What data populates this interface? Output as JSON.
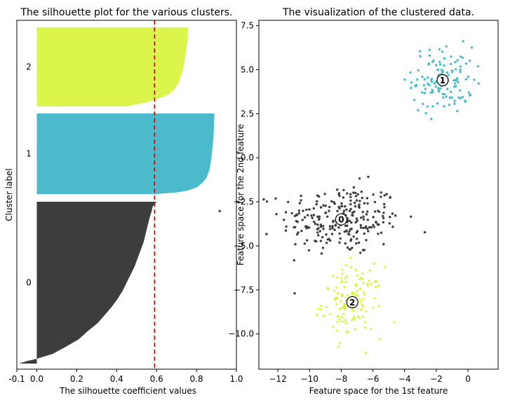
{
  "chart_data": [
    {
      "type": "area",
      "title": "The silhouette plot for the various clusters.",
      "xlabel": "The silhouette coefficient values",
      "ylabel": "Cluster label",
      "xlim": [
        -0.1,
        1.0
      ],
      "xticks": [
        -0.1,
        0.0,
        0.2,
        0.4,
        0.6,
        0.8,
        1.0
      ],
      "xtick_labels": [
        "-0.1",
        "0.0",
        "0.2",
        "0.4",
        "0.6",
        "0.8",
        "1.0"
      ],
      "cluster_labels": [
        "0",
        "1",
        "2"
      ],
      "mean_silhouette": 0.59,
      "clusters": [
        {
          "label": "0",
          "color": "#3d3d3d",
          "samples": 250,
          "profile": [
            [
              0,
              0.6
            ],
            [
              0.03,
              0.58
            ],
            [
              0.06,
              0.575
            ],
            [
              0.1,
              0.565
            ],
            [
              0.15,
              0.555
            ],
            [
              0.2,
              0.545
            ],
            [
              0.25,
              0.535
            ],
            [
              0.3,
              0.52
            ],
            [
              0.35,
              0.505
            ],
            [
              0.4,
              0.49
            ],
            [
              0.45,
              0.47
            ],
            [
              0.5,
              0.45
            ],
            [
              0.55,
              0.43
            ],
            [
              0.6,
              0.405
            ],
            [
              0.65,
              0.375
            ],
            [
              0.7,
              0.34
            ],
            [
              0.75,
              0.305
            ],
            [
              0.8,
              0.255
            ],
            [
              0.85,
              0.21
            ],
            [
              0.9,
              0.14
            ],
            [
              0.94,
              0.08
            ],
            [
              0.97,
              0.0
            ],
            [
              0.985,
              -0.05
            ],
            [
              1.0,
              -0.09
            ]
          ]
        },
        {
          "label": "1",
          "color": "#4bbbcc",
          "samples": 125,
          "profile": [
            [
              0,
              0.89
            ],
            [
              0.3,
              0.885
            ],
            [
              0.55,
              0.875
            ],
            [
              0.7,
              0.865
            ],
            [
              0.8,
              0.85
            ],
            [
              0.86,
              0.83
            ],
            [
              0.92,
              0.8
            ],
            [
              0.96,
              0.75
            ],
            [
              0.98,
              0.7
            ],
            [
              1.0,
              0.6
            ]
          ]
        },
        {
          "label": "2",
          "color": "#dcf54d",
          "samples": 125,
          "profile": [
            [
              0,
              0.76
            ],
            [
              0.15,
              0.755
            ],
            [
              0.35,
              0.745
            ],
            [
              0.5,
              0.735
            ],
            [
              0.6,
              0.725
            ],
            [
              0.7,
              0.71
            ],
            [
              0.78,
              0.69
            ],
            [
              0.85,
              0.66
            ],
            [
              0.9,
              0.61
            ],
            [
              0.95,
              0.55
            ],
            [
              1.0,
              0.45
            ]
          ]
        }
      ]
    },
    {
      "type": "scatter",
      "title": "The visualization of the clustered data.",
      "xlabel": "Feature space for the 1st feature",
      "ylabel": "Feature space for the 2nd feature",
      "xlim": [
        -13.2,
        1.9
      ],
      "ylim": [
        -12.0,
        7.8
      ],
      "xticks": [
        -12,
        -10,
        -8,
        -6,
        -4,
        -2,
        0
      ],
      "xtick_labels": [
        "−12",
        "−10",
        "−8",
        "−6",
        "−4",
        "−2",
        "0"
      ],
      "yticks": [
        -10,
        -7.5,
        -5,
        -2.5,
        0,
        2.5,
        5,
        7.5
      ],
      "ytick_labels": [
        "−10.0",
        "−7.5",
        "−5.0",
        "−2.5",
        "0.0",
        "2.5",
        "5.0",
        "7.5"
      ],
      "series": [
        {
          "label": "0",
          "color": "#3d3d3d",
          "center": [
            -8.0,
            -3.5
          ],
          "spread": [
            1.9,
            1.0
          ],
          "n": 250
        },
        {
          "label": "1",
          "color": "#4bbbcc",
          "center": [
            -1.6,
            4.4
          ],
          "spread": [
            0.95,
            0.95
          ],
          "n": 125
        },
        {
          "label": "2",
          "color": "#dcf54d",
          "center": [
            -7.3,
            -8.2
          ],
          "spread": [
            0.95,
            1.0
          ],
          "n": 125
        }
      ]
    }
  ]
}
